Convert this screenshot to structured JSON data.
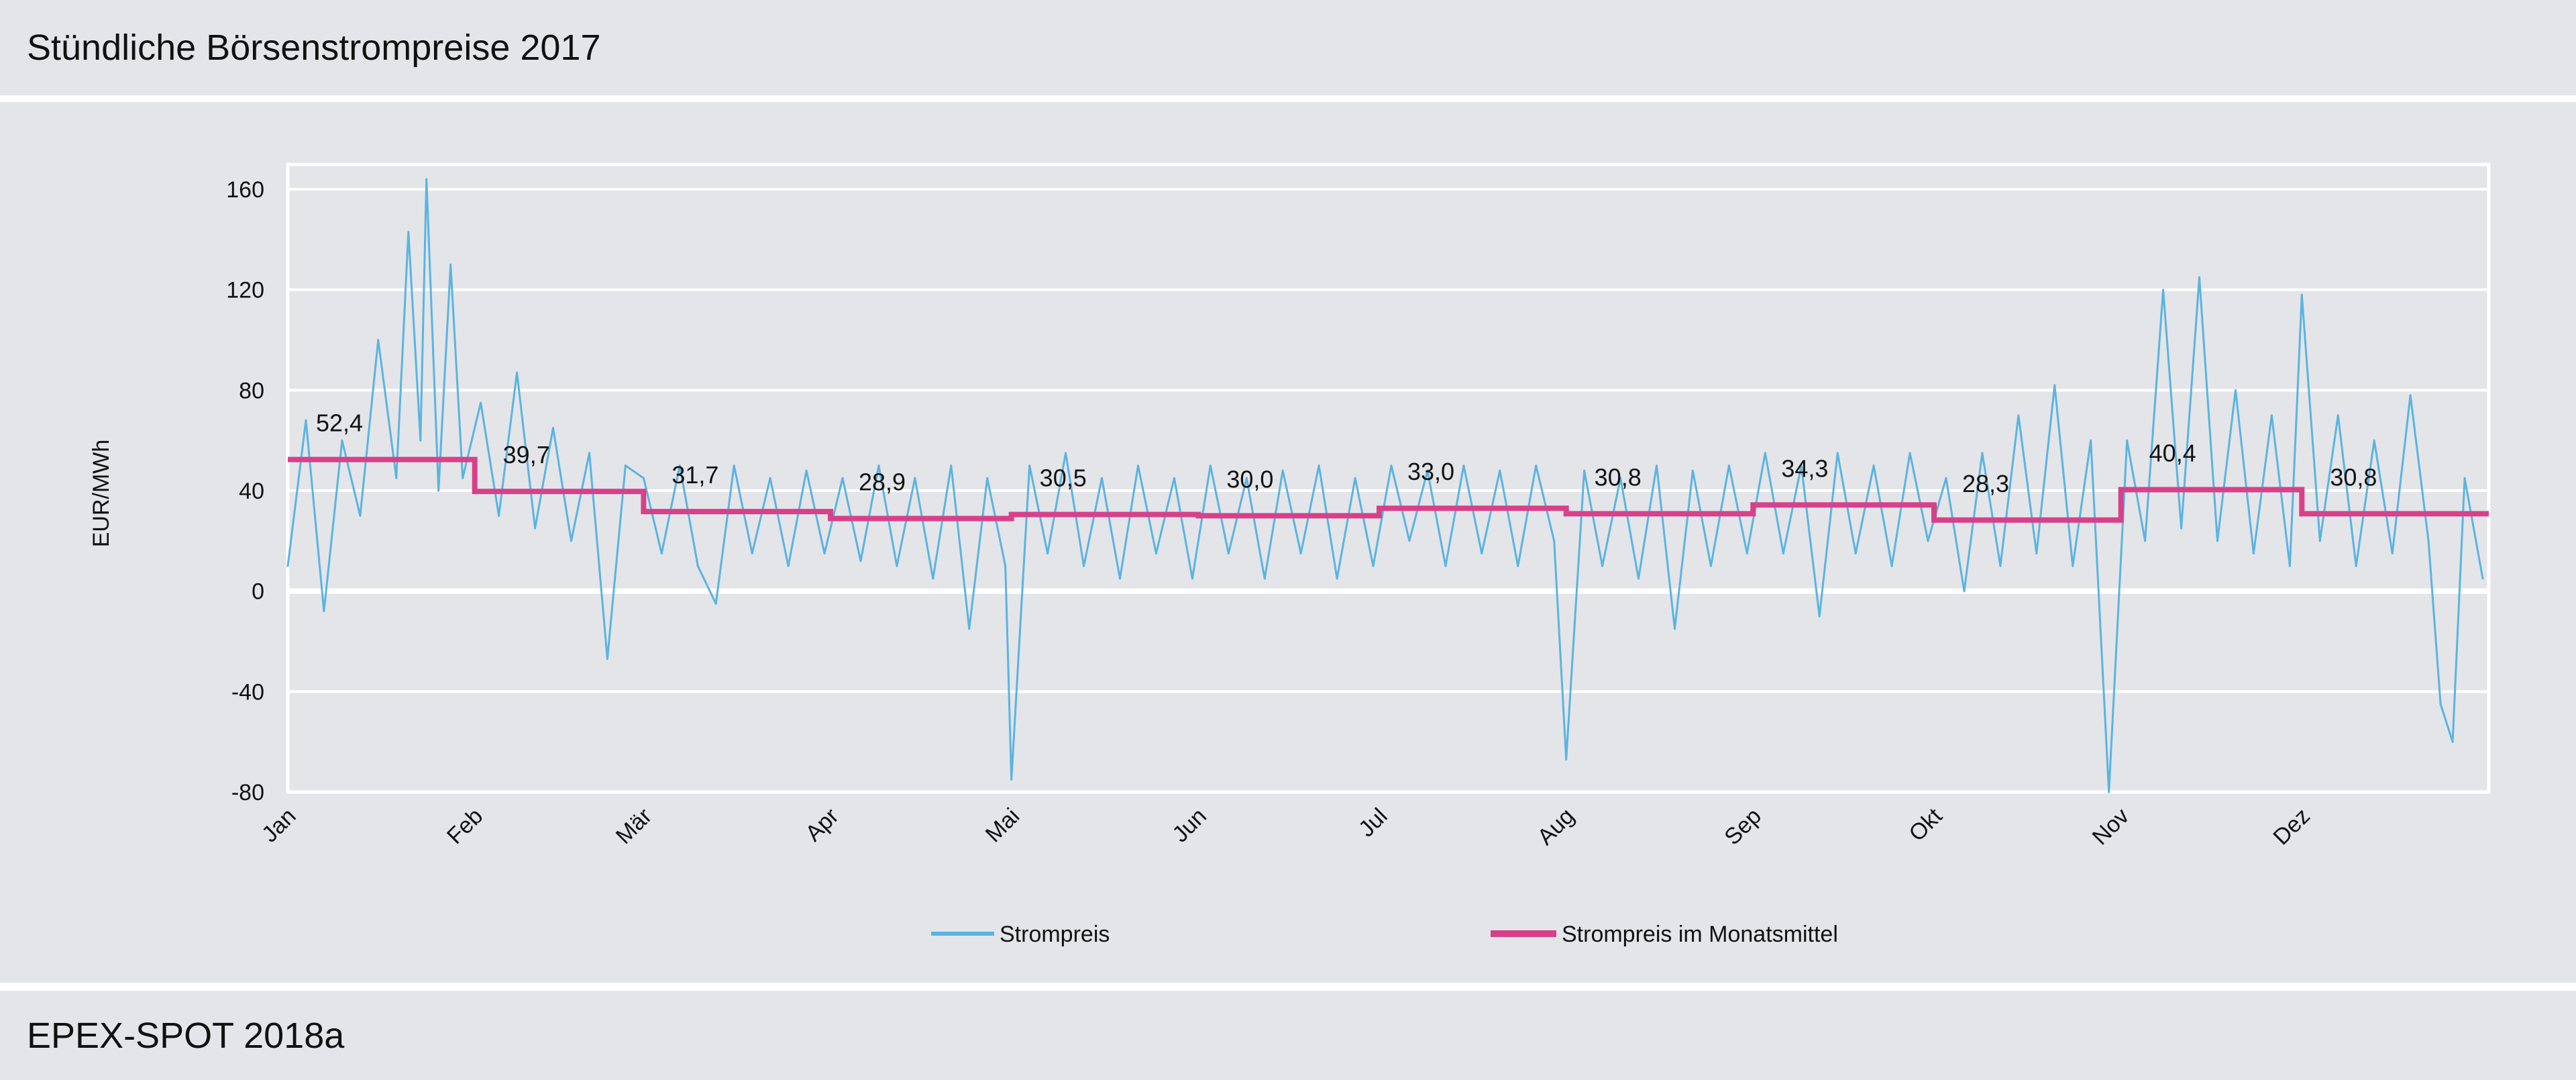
{
  "header": {
    "title": "Stündliche Börsenstrompreise 2017"
  },
  "footer": {
    "source": "EPEX-SPOT 2018a"
  },
  "chart_data": {
    "type": "line",
    "title": "",
    "xlabel": "",
    "ylabel": "EUR/MWh",
    "ylim": [
      -80,
      170
    ],
    "yticks": [
      -80,
      -40,
      0,
      40,
      80,
      120,
      160
    ],
    "x_tick_labels": [
      "Jan",
      "Feb",
      "Mär",
      "Apr",
      "Mai",
      "Jun",
      "Jul",
      "Aug",
      "Sep",
      "Okt",
      "Nov",
      "Dez"
    ],
    "xlim": [
      "2017-01-01",
      "2017-12-31"
    ],
    "grid": "horizontal",
    "legend_placement": "bottom",
    "colors": {
      "hourly": "#5ab4e0",
      "monthly": "#d6418a",
      "background": "#e4e5e9",
      "grid": "#ffffff"
    },
    "series": [
      {
        "name": "Strompreis",
        "points": [
          [
            "2017-01-01",
            10
          ],
          [
            "2017-01-04",
            68
          ],
          [
            "2017-01-07",
            -8
          ],
          [
            "2017-01-10",
            60
          ],
          [
            "2017-01-13",
            30
          ],
          [
            "2017-01-16",
            100
          ],
          [
            "2017-01-19",
            45
          ],
          [
            "2017-01-21",
            143
          ],
          [
            "2017-01-23",
            60
          ],
          [
            "2017-01-24",
            164
          ],
          [
            "2017-01-26",
            40
          ],
          [
            "2017-01-28",
            130
          ],
          [
            "2017-01-30",
            45
          ],
          [
            "2017-02-02",
            75
          ],
          [
            "2017-02-05",
            30
          ],
          [
            "2017-02-08",
            87
          ],
          [
            "2017-02-11",
            25
          ],
          [
            "2017-02-14",
            65
          ],
          [
            "2017-02-17",
            20
          ],
          [
            "2017-02-20",
            55
          ],
          [
            "2017-02-23",
            -27
          ],
          [
            "2017-02-26",
            50
          ],
          [
            "2017-03-01",
            45
          ],
          [
            "2017-03-04",
            15
          ],
          [
            "2017-03-07",
            50
          ],
          [
            "2017-03-10",
            10
          ],
          [
            "2017-03-13",
            -5
          ],
          [
            "2017-03-16",
            50
          ],
          [
            "2017-03-19",
            15
          ],
          [
            "2017-03-22",
            45
          ],
          [
            "2017-03-25",
            10
          ],
          [
            "2017-03-28",
            48
          ],
          [
            "2017-03-31",
            15
          ],
          [
            "2017-04-03",
            45
          ],
          [
            "2017-04-06",
            12
          ],
          [
            "2017-04-09",
            50
          ],
          [
            "2017-04-12",
            10
          ],
          [
            "2017-04-15",
            45
          ],
          [
            "2017-04-18",
            5
          ],
          [
            "2017-04-21",
            50
          ],
          [
            "2017-04-24",
            -15
          ],
          [
            "2017-04-27",
            45
          ],
          [
            "2017-04-30",
            10
          ],
          [
            "2017-05-01",
            -75
          ],
          [
            "2017-05-04",
            50
          ],
          [
            "2017-05-07",
            15
          ],
          [
            "2017-05-10",
            55
          ],
          [
            "2017-05-13",
            10
          ],
          [
            "2017-05-16",
            45
          ],
          [
            "2017-05-19",
            5
          ],
          [
            "2017-05-22",
            50
          ],
          [
            "2017-05-25",
            15
          ],
          [
            "2017-05-28",
            45
          ],
          [
            "2017-05-31",
            5
          ],
          [
            "2017-06-03",
            50
          ],
          [
            "2017-06-06",
            15
          ],
          [
            "2017-06-09",
            45
          ],
          [
            "2017-06-12",
            5
          ],
          [
            "2017-06-15",
            48
          ],
          [
            "2017-06-18",
            15
          ],
          [
            "2017-06-21",
            50
          ],
          [
            "2017-06-24",
            5
          ],
          [
            "2017-06-27",
            45
          ],
          [
            "2017-06-30",
            10
          ],
          [
            "2017-07-03",
            50
          ],
          [
            "2017-07-06",
            20
          ],
          [
            "2017-07-09",
            48
          ],
          [
            "2017-07-12",
            10
          ],
          [
            "2017-07-15",
            50
          ],
          [
            "2017-07-18",
            15
          ],
          [
            "2017-07-21",
            48
          ],
          [
            "2017-07-24",
            10
          ],
          [
            "2017-07-27",
            50
          ],
          [
            "2017-07-30",
            20
          ],
          [
            "2017-08-01",
            -67
          ],
          [
            "2017-08-04",
            48
          ],
          [
            "2017-08-07",
            10
          ],
          [
            "2017-08-10",
            45
          ],
          [
            "2017-08-13",
            5
          ],
          [
            "2017-08-16",
            50
          ],
          [
            "2017-08-19",
            -15
          ],
          [
            "2017-08-22",
            48
          ],
          [
            "2017-08-25",
            10
          ],
          [
            "2017-08-28",
            50
          ],
          [
            "2017-08-31",
            15
          ],
          [
            "2017-09-03",
            55
          ],
          [
            "2017-09-06",
            15
          ],
          [
            "2017-09-09",
            50
          ],
          [
            "2017-09-12",
            -10
          ],
          [
            "2017-09-15",
            55
          ],
          [
            "2017-09-18",
            15
          ],
          [
            "2017-09-21",
            50
          ],
          [
            "2017-09-24",
            10
          ],
          [
            "2017-09-27",
            55
          ],
          [
            "2017-09-30",
            20
          ],
          [
            "2017-10-03",
            45
          ],
          [
            "2017-10-06",
            0
          ],
          [
            "2017-10-09",
            55
          ],
          [
            "2017-10-12",
            10
          ],
          [
            "2017-10-15",
            70
          ],
          [
            "2017-10-18",
            15
          ],
          [
            "2017-10-21",
            82
          ],
          [
            "2017-10-24",
            10
          ],
          [
            "2017-10-27",
            60
          ],
          [
            "2017-10-30",
            -80
          ],
          [
            "2017-11-02",
            60
          ],
          [
            "2017-11-05",
            20
          ],
          [
            "2017-11-08",
            120
          ],
          [
            "2017-11-11",
            25
          ],
          [
            "2017-11-14",
            125
          ],
          [
            "2017-11-17",
            20
          ],
          [
            "2017-11-20",
            80
          ],
          [
            "2017-11-23",
            15
          ],
          [
            "2017-11-26",
            70
          ],
          [
            "2017-11-29",
            10
          ],
          [
            "2017-12-01",
            118
          ],
          [
            "2017-12-04",
            20
          ],
          [
            "2017-12-07",
            70
          ],
          [
            "2017-12-10",
            10
          ],
          [
            "2017-12-13",
            60
          ],
          [
            "2017-12-16",
            15
          ],
          [
            "2017-12-19",
            78
          ],
          [
            "2017-12-22",
            20
          ],
          [
            "2017-12-24",
            -45
          ],
          [
            "2017-12-26",
            -60
          ],
          [
            "2017-12-28",
            45
          ],
          [
            "2017-12-31",
            5
          ]
        ]
      },
      {
        "name": "Strompreis im Monatsmittel",
        "categories": [
          "Jan",
          "Feb",
          "Mär",
          "Apr",
          "Mai",
          "Jun",
          "Jul",
          "Aug",
          "Sep",
          "Okt",
          "Nov",
          "Dez"
        ],
        "values": [
          52.4,
          39.7,
          31.7,
          28.9,
          30.5,
          30.0,
          33.0,
          30.8,
          34.3,
          28.3,
          40.4,
          30.8
        ],
        "labels": [
          "52,4",
          "39,7",
          "31,7",
          "28,9",
          "30,5",
          "30,0",
          "33,0",
          "30,8",
          "34,3",
          "28,3",
          "40,4",
          "30,8"
        ]
      }
    ]
  }
}
